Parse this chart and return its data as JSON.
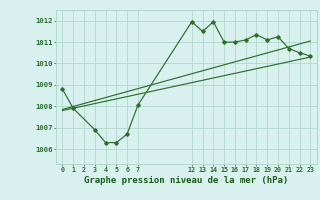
{
  "bg_color": "#d8f0ee",
  "grid_color": "#b0d8cc",
  "line_color": "#2d6e2d",
  "title": "Graphe pression niveau de la mer (hPa)",
  "title_color": "#1a5c1a",
  "title_fontsize": 6.5,
  "ylabel_vals": [
    1006,
    1007,
    1008,
    1009,
    1010,
    1011,
    1012
  ],
  "ylim": [
    1005.3,
    1012.5
  ],
  "xticks_labels": [
    "0",
    "1",
    "2",
    "3",
    "4",
    "5",
    "6",
    "7",
    "12",
    "13",
    "14",
    "15",
    "16",
    "17",
    "18",
    "19",
    "20",
    "21",
    "22",
    "23"
  ],
  "xticks_pos": [
    0,
    1,
    2,
    3,
    4,
    5,
    6,
    7,
    12,
    13,
    14,
    15,
    16,
    17,
    18,
    19,
    20,
    21,
    22,
    23
  ],
  "xlim": [
    -0.6,
    23.6
  ],
  "series_main_x": [
    0,
    1,
    3,
    4,
    5,
    6,
    7,
    12,
    13,
    14,
    15,
    16,
    17,
    18,
    19,
    20,
    21,
    22,
    23
  ],
  "series_main_y": [
    1008.8,
    1007.9,
    1006.9,
    1006.3,
    1006.3,
    1006.7,
    1008.05,
    1011.95,
    1011.5,
    1011.95,
    1011.0,
    1011.0,
    1011.1,
    1011.35,
    1011.1,
    1011.25,
    1010.7,
    1010.5,
    1010.35
  ],
  "series_trend1_x": [
    0,
    23
  ],
  "series_trend1_y": [
    1007.85,
    1011.05
  ],
  "series_trend2_x": [
    0,
    23
  ],
  "series_trend2_y": [
    1007.8,
    1010.3
  ]
}
